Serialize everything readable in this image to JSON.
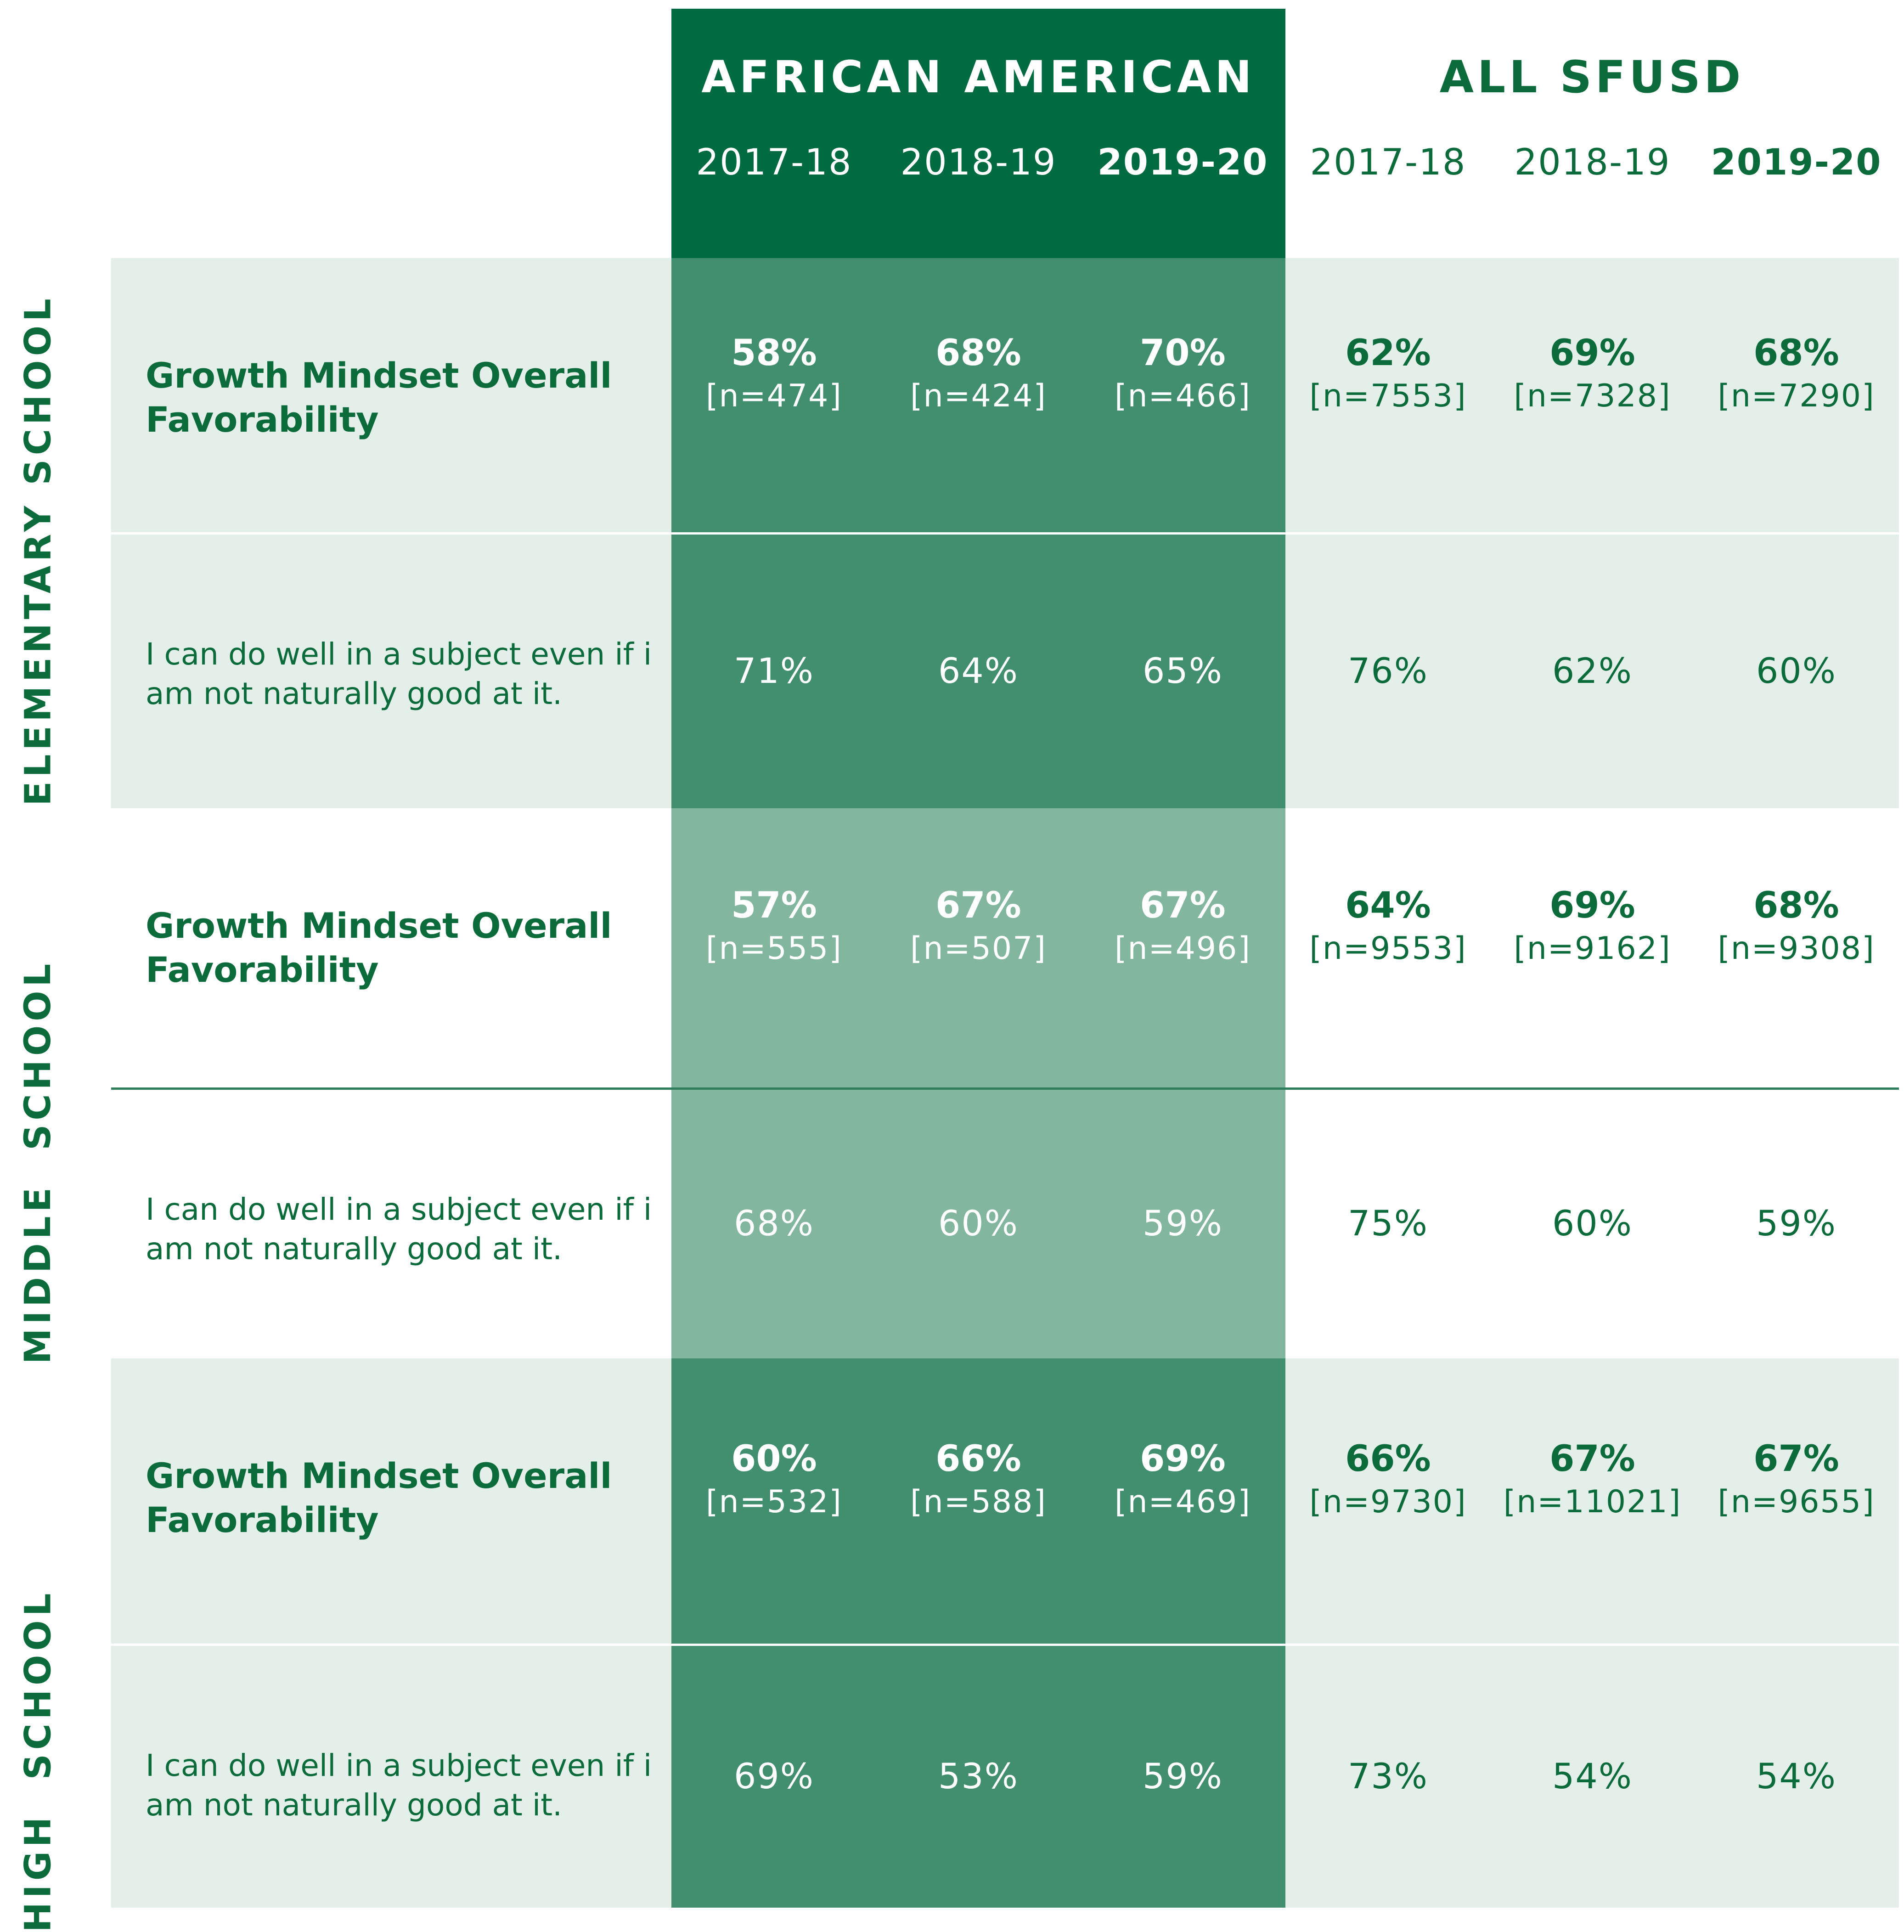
{
  "colors": {
    "header_band": "#006a40",
    "aa_dark": "#428f6f",
    "aa_light": "#82b69f",
    "row_tint": "#e5efea",
    "green_text": "#0b6b3a",
    "divider": "#2e7d5b"
  },
  "chart_data": {
    "type": "table",
    "column_groups": [
      {
        "name": "AFRICAN AMERICAN",
        "years": [
          "2017-18",
          "2018-19",
          "2019-20"
        ]
      },
      {
        "name": "ALL SFUSD",
        "years": [
          "2017-18",
          "2018-19",
          "2019-20"
        ]
      }
    ],
    "sections": [
      {
        "name": "ELEMENTARY SCHOOL",
        "rows": [
          {
            "label": "Growth Mindset Overall Favorability",
            "label_lines": [
              "Growth Mindset Overall",
              "Favorability"
            ],
            "bold": true,
            "values": [
              "58%",
              "68%",
              "70%",
              "62%",
              "69%",
              "68%"
            ],
            "n": [
              "[n=474]",
              "[n=424]",
              "[n=466]",
              "[n=7553]",
              "[n=7328]",
              "[n=7290]"
            ]
          },
          {
            "label": "I can do well in a subject even if i am not naturally good at it.",
            "label_lines": [
              "I can do well in a subject even if i",
              "am not naturally good at it."
            ],
            "bold": false,
            "values": [
              "71%",
              "64%",
              "65%",
              "76%",
              "62%",
              "60%"
            ]
          }
        ]
      },
      {
        "name": "MIDDLE  SCHOOL",
        "rows": [
          {
            "label": "Growth Mindset Overall Favorability",
            "label_lines": [
              "Growth Mindset Overall",
              "Favorability"
            ],
            "bold": true,
            "values": [
              "57%",
              "67%",
              "67%",
              "64%",
              "69%",
              "68%"
            ],
            "n": [
              "[n=555]",
              "[n=507]",
              "[n=496]",
              "[n=9553]",
              "[n=9162]",
              "[n=9308]"
            ]
          },
          {
            "label": "I can do well in a subject even if i am not naturally good at it.",
            "label_lines": [
              "I can do well in a subject even if i",
              "am not naturally good at it."
            ],
            "bold": false,
            "values": [
              "68%",
              "60%",
              "59%",
              "75%",
              "60%",
              "59%"
            ]
          }
        ]
      },
      {
        "name": "HIGH  SCHOOL",
        "rows": [
          {
            "label": "Growth Mindset Overall Favorability",
            "label_lines": [
              "Growth Mindset Overall",
              "Favorability"
            ],
            "bold": true,
            "values": [
              "60%",
              "66%",
              "69%",
              "66%",
              "67%",
              "67%"
            ],
            "n": [
              "[n=532]",
              "[n=588]",
              "[n=469]",
              "[n=9730]",
              "[n=11021]",
              "[n=9655]"
            ]
          },
          {
            "label": "I can do well in a subject even if i am not naturally good at it.",
            "label_lines": [
              "I can do well in a subject even if i",
              "am not naturally good at it."
            ],
            "bold": false,
            "values": [
              "69%",
              "53%",
              "59%",
              "73%",
              "54%",
              "54%"
            ]
          }
        ]
      }
    ]
  }
}
